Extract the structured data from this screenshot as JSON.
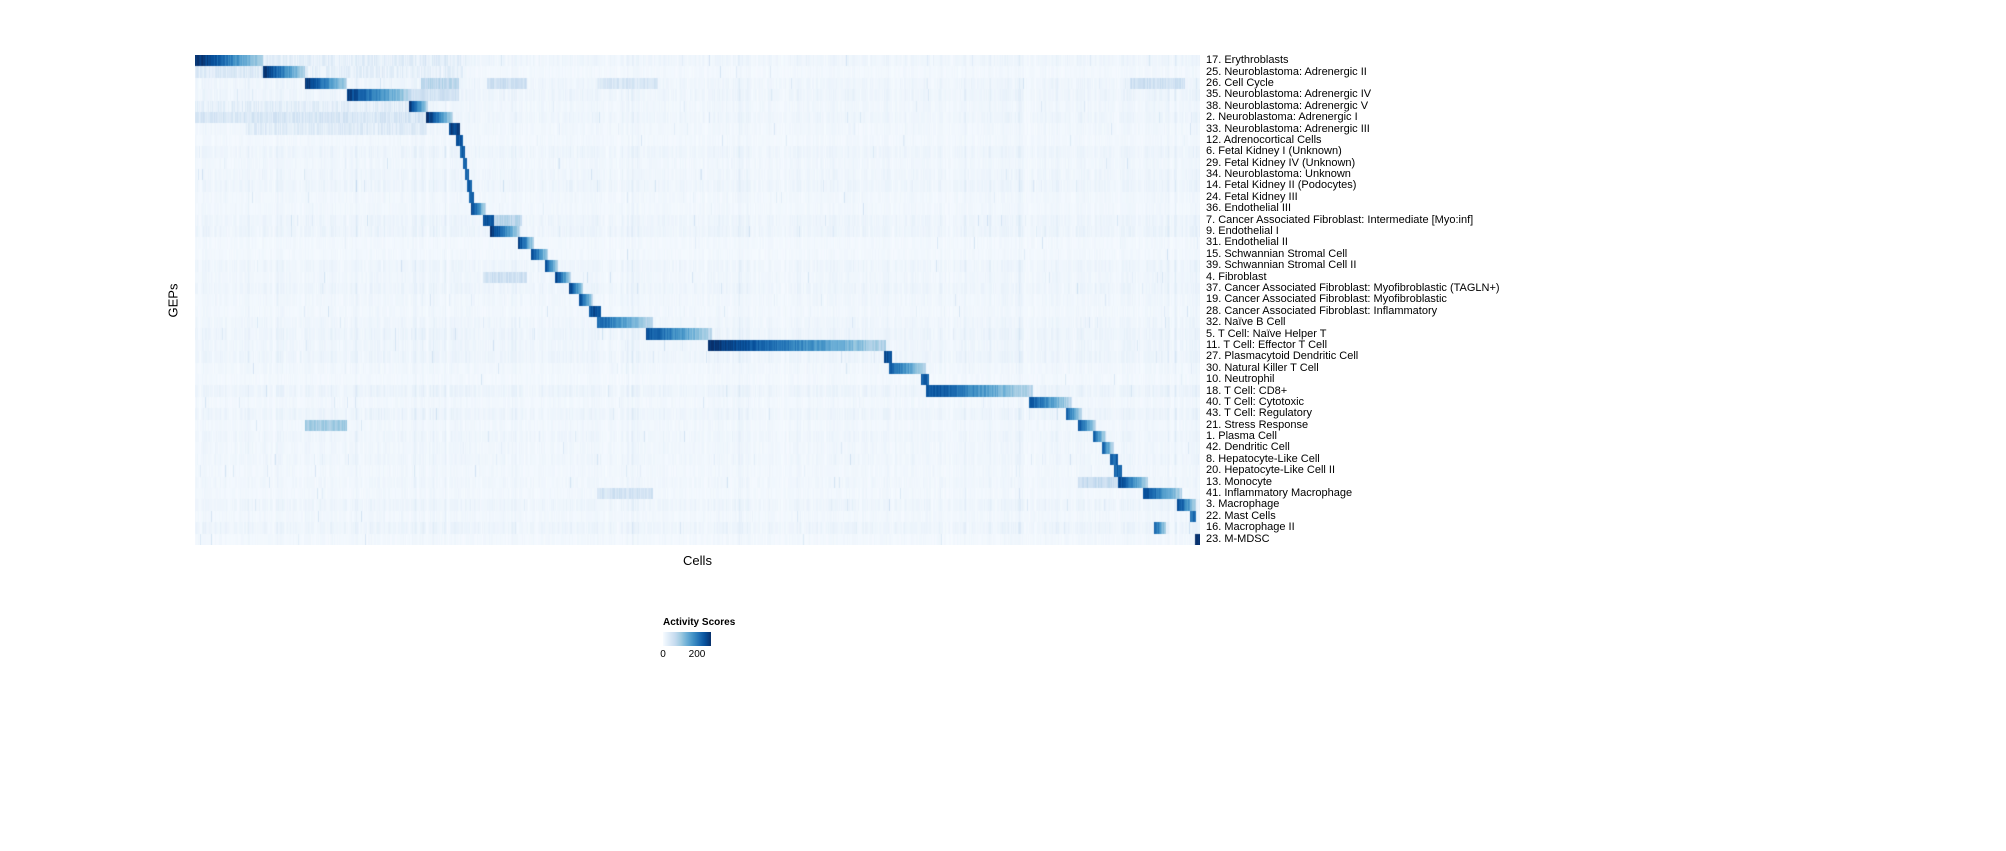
{
  "figure": {
    "background": "#ffffff"
  },
  "chart_data": {
    "type": "heatmap",
    "title": "",
    "xlabel": "Cells",
    "ylabel": "GEPs",
    "value_range": [
      0,
      200
    ],
    "grid": false,
    "colormap": "Blues",
    "colormap_stops": [
      [
        0.0,
        "#f7fbff"
      ],
      [
        0.125,
        "#deebf7"
      ],
      [
        0.25,
        "#c6dbef"
      ],
      [
        0.375,
        "#9ecae1"
      ],
      [
        0.5,
        "#6baed6"
      ],
      [
        0.625,
        "#4292c6"
      ],
      [
        0.75,
        "#2171b5"
      ],
      [
        0.875,
        "#08519c"
      ],
      [
        1.0,
        "#08306b"
      ]
    ],
    "legend": {
      "title": "Activity Scores",
      "tick_labels": [
        "0",
        "200"
      ],
      "position": "bottom"
    },
    "n_rows": 43,
    "row_note": "blocks are [x_start_fraction, x_end_fraction, peak_activity_score] of high-activity cell ranges along the x axis",
    "rows": [
      {
        "label": "17. Erythroblasts",
        "blocks": [
          [
            0.0,
            0.067,
            200
          ],
          [
            0.067,
            0.27,
            18
          ]
        ]
      },
      {
        "label": "25. Neuroblastoma: Adrenergic II",
        "blocks": [
          [
            0.067,
            0.109,
            195
          ],
          [
            0.0,
            0.067,
            25
          ],
          [
            0.109,
            0.27,
            16
          ]
        ]
      },
      {
        "label": "26. Cell Cycle",
        "blocks": [
          [
            0.109,
            0.151,
            195
          ],
          [
            0.224,
            0.262,
            55
          ],
          [
            0.29,
            0.33,
            40
          ],
          [
            0.4,
            0.46,
            30
          ],
          [
            0.93,
            0.985,
            40
          ]
        ]
      },
      {
        "label": "35. Neuroblastoma: Adrenergic IV",
        "blocks": [
          [
            0.151,
            0.214,
            185
          ],
          [
            0.214,
            0.262,
            38
          ]
        ]
      },
      {
        "label": "38. Neuroblastoma: Adrenergic V",
        "blocks": [
          [
            0.212,
            0.231,
            195
          ],
          [
            0.0,
            0.212,
            18
          ]
        ]
      },
      {
        "label": "2. Neuroblastoma: Adrenergic I",
        "blocks": [
          [
            0.229,
            0.256,
            200
          ],
          [
            0.0,
            0.229,
            30
          ]
        ]
      },
      {
        "label": "33. Neuroblastoma: Adrenergic III",
        "blocks": [
          [
            0.252,
            0.263,
            185
          ],
          [
            0.05,
            0.23,
            22
          ]
        ]
      },
      {
        "label": "12. Adrenocortical Cells",
        "blocks": [
          [
            0.259,
            0.266,
            170
          ]
        ]
      },
      {
        "label": "6. Fetal Kidney I (Unknown)",
        "blocks": [
          [
            0.263,
            0.268,
            160
          ]
        ]
      },
      {
        "label": "29. Fetal Kidney IV (Unknown)",
        "blocks": [
          [
            0.266,
            0.27,
            155
          ]
        ]
      },
      {
        "label": "34. Neuroblastoma: Unknown",
        "blocks": [
          [
            0.268,
            0.272,
            160
          ]
        ]
      },
      {
        "label": "14. Fetal Kidney II (Podocytes)",
        "blocks": [
          [
            0.27,
            0.275,
            165
          ]
        ]
      },
      {
        "label": "24. Fetal Kidney III",
        "blocks": [
          [
            0.272,
            0.277,
            165
          ]
        ]
      },
      {
        "label": "36. Endothelial III",
        "blocks": [
          [
            0.274,
            0.289,
            185
          ]
        ]
      },
      {
        "label": "7. Cancer Associated Fibroblast: Intermediate [Myo:inf]",
        "blocks": [
          [
            0.286,
            0.297,
            170
          ],
          [
            0.297,
            0.325,
            55
          ]
        ]
      },
      {
        "label": "9. Endothelial I",
        "blocks": [
          [
            0.293,
            0.323,
            195
          ]
        ]
      },
      {
        "label": "31. Endothelial II",
        "blocks": [
          [
            0.321,
            0.337,
            185
          ]
        ]
      },
      {
        "label": "15. Schwannian Stromal Cell",
        "blocks": [
          [
            0.334,
            0.351,
            185
          ]
        ]
      },
      {
        "label": "39. Schwannian Stromal Cell II",
        "blocks": [
          [
            0.348,
            0.361,
            175
          ]
        ]
      },
      {
        "label": "4. Fibroblast",
        "blocks": [
          [
            0.358,
            0.374,
            185
          ],
          [
            0.286,
            0.33,
            40
          ]
        ]
      },
      {
        "label": "37. Cancer Associated Fibroblast: Myofibroblastic (TAGLN+)",
        "blocks": [
          [
            0.372,
            0.386,
            185
          ]
        ]
      },
      {
        "label": "19. Cancer Associated Fibroblast: Myofibroblastic",
        "blocks": [
          [
            0.382,
            0.396,
            175
          ]
        ]
      },
      {
        "label": "28. Cancer Associated Fibroblast: Inflammatory",
        "blocks": [
          [
            0.392,
            0.403,
            175
          ]
        ]
      },
      {
        "label": "32. Naïve B Cell",
        "blocks": [
          [
            0.4,
            0.455,
            160
          ]
        ]
      },
      {
        "label": "5. T Cell: Naïve Helper T",
        "blocks": [
          [
            0.448,
            0.514,
            175
          ]
        ]
      },
      {
        "label": "11. T Cell: Effector T Cell",
        "blocks": [
          [
            0.51,
            0.687,
            195
          ]
        ]
      },
      {
        "label": "27. Plasmacytoid Dendritic Cell",
        "blocks": [
          [
            0.685,
            0.693,
            175
          ]
        ]
      },
      {
        "label": "30. Natural Killer T Cell",
        "blocks": [
          [
            0.69,
            0.727,
            165
          ]
        ]
      },
      {
        "label": "10. Neutrophil",
        "blocks": [
          [
            0.722,
            0.73,
            160
          ]
        ]
      },
      {
        "label": "18. T Cell: CD8+",
        "blocks": [
          [
            0.727,
            0.833,
            175
          ]
        ]
      },
      {
        "label": "40. T Cell: Cytotoxic",
        "blocks": [
          [
            0.829,
            0.872,
            170
          ]
        ]
      },
      {
        "label": "43. T Cell: Regulatory",
        "blocks": [
          [
            0.866,
            0.882,
            160
          ]
        ]
      },
      {
        "label": "21. Stress Response",
        "blocks": [
          [
            0.878,
            0.896,
            170
          ],
          [
            0.109,
            0.151,
            70
          ]
        ]
      },
      {
        "label": "1. Plasma Cell",
        "blocks": [
          [
            0.893,
            0.906,
            165
          ]
        ]
      },
      {
        "label": "42. Dendritic Cell",
        "blocks": [
          [
            0.902,
            0.914,
            160
          ]
        ]
      },
      {
        "label": "8. Hepatocyte-Like Cell",
        "blocks": [
          [
            0.91,
            0.918,
            160
          ]
        ]
      },
      {
        "label": "20. Hepatocyte-Like Cell II",
        "blocks": [
          [
            0.914,
            0.922,
            160
          ]
        ]
      },
      {
        "label": "13. Monocyte",
        "blocks": [
          [
            0.918,
            0.948,
            185
          ],
          [
            0.878,
            0.918,
            45
          ]
        ]
      },
      {
        "label": "41. Inflammatory Macrophage",
        "blocks": [
          [
            0.943,
            0.982,
            180
          ],
          [
            0.4,
            0.455,
            35
          ]
        ]
      },
      {
        "label": "3. Macrophage",
        "blocks": [
          [
            0.977,
            0.996,
            185
          ]
        ]
      },
      {
        "label": "22. Mast Cells",
        "blocks": [
          [
            0.99,
            0.996,
            150
          ]
        ]
      },
      {
        "label": "16. Macrophage II",
        "blocks": [
          [
            0.954,
            0.966,
            170
          ]
        ]
      },
      {
        "label": "23. M-MDSC",
        "blocks": [
          [
            0.995,
            1.0,
            200
          ]
        ]
      }
    ]
  }
}
